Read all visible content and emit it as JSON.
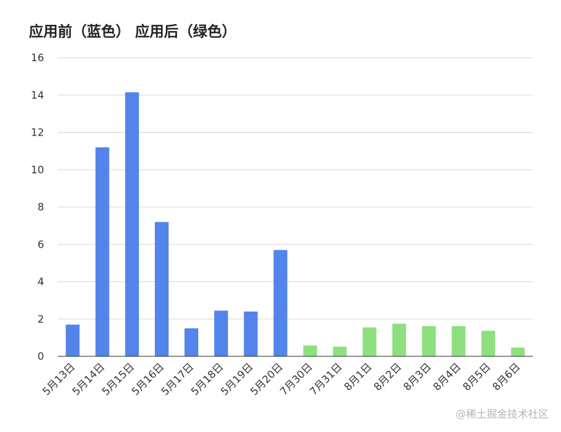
{
  "watermark": "@稀土掘金技术社区",
  "colors": {
    "before": "#5384ec",
    "after": "#8ee07f",
    "grid": "#d9d9d9",
    "axis": "#333333"
  },
  "chart_data": {
    "type": "bar",
    "title": "应用前（蓝色） 应用后（绿色）",
    "xlabel": "",
    "ylabel": "",
    "ylim": [
      0,
      16
    ],
    "yticks": [
      0,
      2,
      4,
      6,
      8,
      10,
      12,
      14,
      16
    ],
    "grid": true,
    "categories": [
      "5月13日",
      "5月14日",
      "5月15日",
      "5月16日",
      "5月17日",
      "5月18日",
      "5月19日",
      "5月20日",
      "7月30日",
      "7月31日",
      "8月1日",
      "8月2日",
      "8月3日",
      "8月4日",
      "8月5日",
      "8月6日"
    ],
    "values": [
      1.7,
      11.2,
      14.15,
      7.2,
      1.5,
      2.45,
      2.4,
      5.7,
      0.58,
      0.52,
      1.55,
      1.75,
      1.62,
      1.62,
      1.37,
      0.47
    ],
    "groups": [
      "before",
      "before",
      "before",
      "before",
      "before",
      "before",
      "before",
      "before",
      "after",
      "after",
      "after",
      "after",
      "after",
      "after",
      "after",
      "after"
    ]
  }
}
